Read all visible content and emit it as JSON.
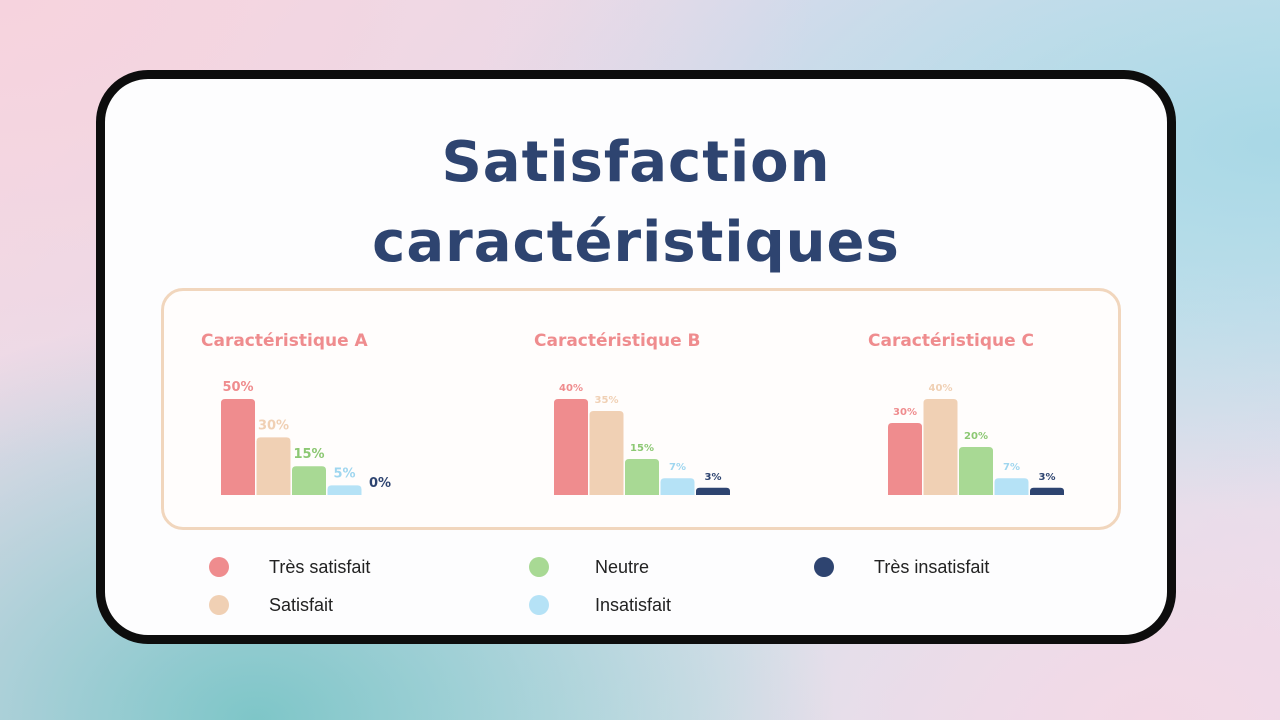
{
  "title_line1": "Satisfaction",
  "title_line2": "caractéristiques",
  "colors": {
    "tres_satisfait": "#ef8c8e",
    "satisfait": "#f0d0b4",
    "neutre": "#a8d994",
    "insatisfait": "#b5e2f6",
    "tres_insatisfait": "#2e4470",
    "chart_title": "#ef8c8e"
  },
  "chart_data": [
    {
      "type": "bar",
      "title": "Caractéristique A",
      "categories": [
        "Très satisfait",
        "Satisfait",
        "Neutre",
        "Insatisfait",
        "Très insatisfait"
      ],
      "values": [
        50,
        30,
        15,
        5,
        0
      ],
      "labels": [
        "50%",
        "30%",
        "15%",
        "5%",
        "0%"
      ],
      "ylim": [
        0,
        50
      ],
      "xlabel": "",
      "ylabel": ""
    },
    {
      "type": "bar",
      "title": "Caractéristique B",
      "categories": [
        "Très satisfait",
        "Satisfait",
        "Neutre",
        "Insatisfait",
        "Très insatisfait"
      ],
      "values": [
        40,
        35,
        15,
        7,
        3
      ],
      "labels": [
        "40%",
        "35%",
        "15%",
        "7%",
        "3%"
      ],
      "ylim": [
        0,
        40
      ],
      "xlabel": "",
      "ylabel": ""
    },
    {
      "type": "bar",
      "title": "Caractéristique C",
      "categories": [
        "Très satisfait",
        "Satisfait",
        "Neutre",
        "Insatisfait",
        "Très insatisfait"
      ],
      "values": [
        30,
        40,
        20,
        7,
        3
      ],
      "labels": [
        "30%",
        "40%",
        "20%",
        "7%",
        "3%"
      ],
      "ylim": [
        0,
        40
      ],
      "xlabel": "",
      "ylabel": ""
    }
  ],
  "legend": [
    {
      "label": "Très satisfait",
      "color": "#ef8c8e"
    },
    {
      "label": "Satisfait",
      "color": "#f0d0b4"
    },
    {
      "label": "Neutre",
      "color": "#a8d994"
    },
    {
      "label": "Insatisfait",
      "color": "#b5e2f6"
    },
    {
      "label": "Très insatisfait",
      "color": "#2e4470"
    }
  ]
}
